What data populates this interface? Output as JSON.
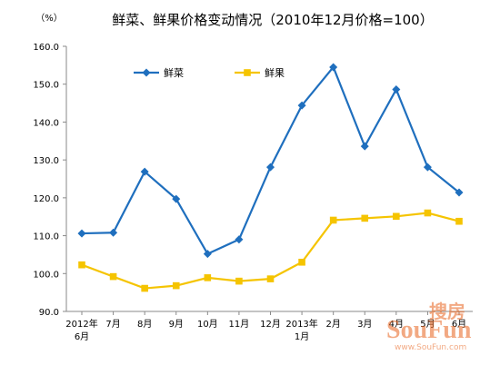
{
  "chart_data": {
    "type": "line",
    "title": "鲜菜、鲜果价格变动情况（2010年12月价格=100）",
    "ylabel": "（%）",
    "xlabel": "",
    "ylim": [
      90,
      160
    ],
    "yticks": [
      "90.0",
      "100.0",
      "110.0",
      "120.0",
      "130.0",
      "140.0",
      "150.0",
      "160.0"
    ],
    "grid": false,
    "legend": "top-left",
    "categories": [
      [
        "2012年",
        "6月"
      ],
      [
        "7月"
      ],
      [
        "8月"
      ],
      [
        "9月"
      ],
      [
        "10月"
      ],
      [
        "11月"
      ],
      [
        "12月"
      ],
      [
        "2013年",
        "1月"
      ],
      [
        "2月"
      ],
      [
        "3月"
      ],
      [
        "4月"
      ],
      [
        "5月"
      ],
      [
        "6月"
      ]
    ],
    "series": [
      {
        "name": "鲜菜",
        "color": "#1F6FBE",
        "marker": "diamond",
        "values": [
          110.6,
          110.8,
          126.9,
          119.7,
          105.2,
          109.0,
          128.1,
          144.4,
          154.5,
          133.6,
          148.6,
          128.1,
          121.4
        ]
      },
      {
        "name": "鲜果",
        "color": "#F5C400",
        "marker": "square",
        "values": [
          102.3,
          99.2,
          96.1,
          96.8,
          98.9,
          98.0,
          98.6,
          103.0,
          114.1,
          114.6,
          115.1,
          116.0,
          113.8
        ]
      }
    ]
  },
  "watermark": {
    "line1": "搜房",
    "line2": "SouFun",
    "url": "www.SouFun.com"
  }
}
